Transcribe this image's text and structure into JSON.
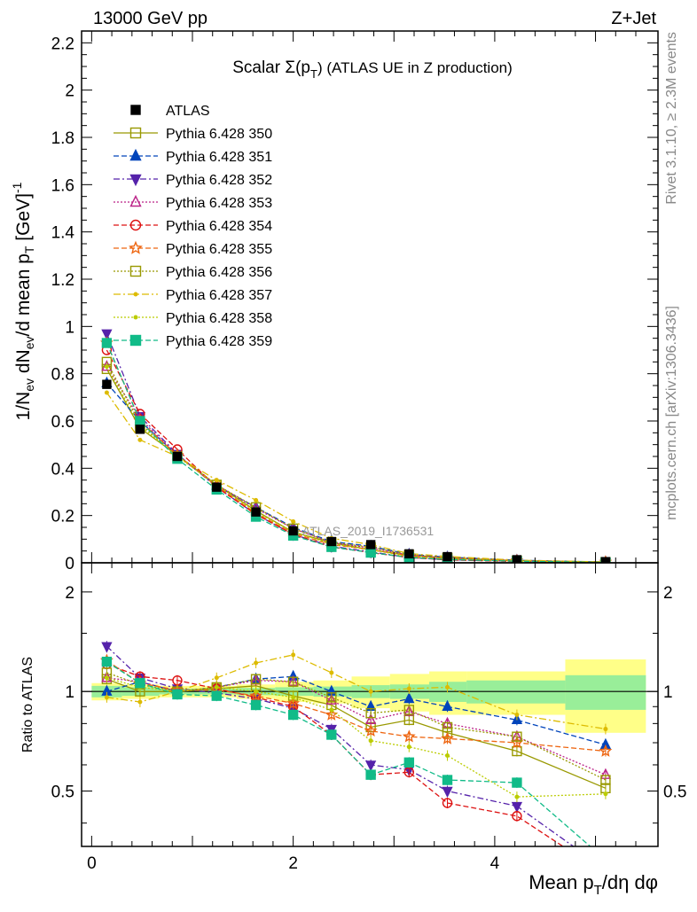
{
  "header": {
    "left": "13000 GeV pp",
    "right": "Z+Jet"
  },
  "side_labels": {
    "rivet": "Rivet 3.1.10, ≥ 2.3M events",
    "mcplots": "mcplots.cern.ch [arXiv:1306.3436]"
  },
  "watermark": "ATLAS_2019_I1736531",
  "chart_data": [
    {
      "type": "line",
      "panel": "main",
      "title": "Scalar Σ(pT) (ATLAS UE in Z production)",
      "title_parts": {
        "prefix": "Scalar Σ(p",
        "sub": "T",
        "suffix": ") (ATLAS UE in Z production)"
      },
      "ylabel": "1/N_ev dN_ev/d mean p_T [GeV]^-1",
      "xlabel": "Mean p_T/dη dφ",
      "xlim": [
        -0.1,
        5.62
      ],
      "ylim": [
        0,
        2.25
      ],
      "y_ticks": [
        "0",
        "0.2",
        "0.4",
        "0.6",
        "0.8",
        "1",
        "1.2",
        "1.4",
        "1.6",
        "1.8",
        "2",
        "2.2"
      ],
      "legend_position": "top-left",
      "x": [
        0.15,
        0.48,
        0.85,
        1.24,
        1.63,
        2.0,
        2.38,
        2.77,
        3.15,
        3.53,
        4.22,
        5.1
      ],
      "reference": {
        "name": "ATLAS",
        "color": "#000000",
        "values": [
          0.755,
          0.565,
          0.45,
          0.32,
          0.215,
          0.135,
          0.09,
          0.077,
          0.038,
          0.026,
          0.013,
          0.005
        ]
      },
      "series": [
        {
          "name": "Pythia 6.428 350",
          "color": "#999900",
          "marker": "square-open",
          "dash": "solid",
          "values": [
            0.82,
            0.57,
            0.455,
            0.33,
            0.22,
            0.13,
            0.085,
            0.055,
            0.031,
            0.021,
            0.009,
            0.003
          ]
        },
        {
          "name": "Pythia 6.428 351",
          "color": "#0044bb",
          "marker": "triangle-up",
          "dash": "6,3",
          "values": [
            0.76,
            0.6,
            0.455,
            0.325,
            0.235,
            0.15,
            0.09,
            0.07,
            0.036,
            0.024,
            0.011,
            0.0035
          ]
        },
        {
          "name": "Pythia 6.428 352",
          "color": "#5522aa",
          "marker": "triangle-down",
          "dash": "7,3,2,3",
          "values": [
            0.97,
            0.62,
            0.46,
            0.32,
            0.205,
            0.12,
            0.07,
            0.046,
            0.022,
            0.013,
            0.006,
            0.0015
          ]
        },
        {
          "name": "Pythia 6.428 353",
          "color": "#bb2288",
          "marker": "triangle-up-open",
          "dash": "2,2",
          "values": [
            0.83,
            0.61,
            0.455,
            0.33,
            0.23,
            0.145,
            0.085,
            0.063,
            0.033,
            0.021,
            0.0095,
            0.0028
          ]
        },
        {
          "name": "Pythia 6.428 354",
          "color": "#dd1111",
          "marker": "circle-open",
          "dash": "6,3",
          "values": [
            0.9,
            0.63,
            0.48,
            0.32,
            0.205,
            0.12,
            0.067,
            0.043,
            0.022,
            0.012,
            0.0055,
            0.0014
          ]
        },
        {
          "name": "Pythia 6.428 355",
          "color": "#ee6611",
          "marker": "star-open",
          "dash": "6,3",
          "values": [
            0.93,
            0.6,
            0.455,
            0.325,
            0.21,
            0.125,
            0.077,
            0.056,
            0.028,
            0.019,
            0.0088,
            0.0033
          ]
        },
        {
          "name": "Pythia 6.428 356",
          "color": "#999900",
          "marker": "square-open",
          "dash": "2,2",
          "values": [
            0.85,
            0.59,
            0.45,
            0.33,
            0.235,
            0.145,
            0.087,
            0.066,
            0.034,
            0.02,
            0.0095,
            0.0027
          ]
        },
        {
          "name": "Pythia 6.428 357",
          "color": "#ddbb00",
          "marker": "dot",
          "dash": "8,3,2,3",
          "values": [
            0.72,
            0.52,
            0.45,
            0.35,
            0.265,
            0.175,
            0.104,
            0.077,
            0.039,
            0.027,
            0.011,
            0.0039
          ]
        },
        {
          "name": "Pythia 6.428 358",
          "color": "#bbcc00",
          "marker": "dot",
          "dash": "2,2",
          "values": [
            0.83,
            0.58,
            0.45,
            0.33,
            0.215,
            0.13,
            0.08,
            0.055,
            0.026,
            0.017,
            0.0064,
            0.0022
          ]
        },
        {
          "name": "Pythia 6.428 359",
          "color": "#11bb88",
          "marker": "square",
          "dash": "6,3",
          "values": [
            0.93,
            0.6,
            0.44,
            0.31,
            0.195,
            0.115,
            0.067,
            0.043,
            0.023,
            0.014,
            0.0068,
            0.0015
          ]
        }
      ]
    },
    {
      "type": "line",
      "panel": "ratio",
      "ylabel": "Ratio to ATLAS",
      "xlabel": "Mean p_T/dη dφ",
      "xlim": [
        -0.1,
        5.62
      ],
      "ylim": [
        0.34,
        2.45
      ],
      "x_ticks": [
        "0",
        "2",
        "4"
      ],
      "y_ticks": [
        "0.5",
        "1",
        "2"
      ],
      "x": [
        0.15,
        0.48,
        0.85,
        1.24,
        1.63,
        2.0,
        2.38,
        2.77,
        3.15,
        3.53,
        4.22,
        5.1
      ],
      "bands": {
        "edges": [
          0.0,
          0.3,
          0.67,
          1.05,
          1.44,
          1.82,
          2.2,
          2.58,
          2.96,
          3.35,
          3.72,
          4.7,
          5.5
        ],
        "stat": [
          0.04,
          0.03,
          0.02,
          0.02,
          0.025,
          0.03,
          0.035,
          0.045,
          0.05,
          0.07,
          0.08,
          0.12
        ],
        "total": [
          0.06,
          0.05,
          0.04,
          0.04,
          0.05,
          0.07,
          0.08,
          0.11,
          0.13,
          0.15,
          0.15,
          0.25
        ],
        "stat_color": "#99ee99",
        "total_color": "#ffff88"
      },
      "series": [
        {
          "name": "Pythia 6.428 350",
          "values": [
            1.09,
            1.0,
            1.0,
            1.02,
            1.04,
            0.97,
            0.91,
            0.78,
            0.82,
            0.75,
            0.66,
            0.51
          ]
        },
        {
          "name": "Pythia 6.428 351",
          "values": [
            1.0,
            1.07,
            1.0,
            1.03,
            1.09,
            1.11,
            1.0,
            0.9,
            0.95,
            0.9,
            0.82,
            0.69
          ]
        },
        {
          "name": "Pythia 6.428 352",
          "values": [
            1.37,
            1.1,
            1.02,
            0.99,
            0.95,
            0.89,
            0.77,
            0.6,
            0.58,
            0.5,
            0.45,
            0.29
          ]
        },
        {
          "name": "Pythia 6.428 353",
          "values": [
            1.1,
            1.07,
            1.0,
            1.03,
            1.08,
            1.07,
            0.94,
            0.82,
            0.87,
            0.8,
            0.73,
            0.56
          ]
        },
        {
          "name": "Pythia 6.428 354",
          "values": [
            1.21,
            1.11,
            1.08,
            1.02,
            0.96,
            0.9,
            0.74,
            0.56,
            0.57,
            0.46,
            0.42,
            0.28
          ]
        },
        {
          "name": "Pythia 6.428 355",
          "values": [
            1.24,
            1.06,
            1.01,
            1.01,
            0.97,
            0.92,
            0.85,
            0.76,
            0.73,
            0.72,
            0.7,
            0.66
          ]
        },
        {
          "name": "Pythia 6.428 356",
          "values": [
            1.14,
            1.05,
            1.0,
            1.03,
            1.09,
            1.07,
            0.96,
            0.86,
            0.88,
            0.78,
            0.73,
            0.54
          ]
        },
        {
          "name": "Pythia 6.428 357",
          "values": [
            0.96,
            0.93,
            1.0,
            1.1,
            1.22,
            1.29,
            1.14,
            1.0,
            1.02,
            1.03,
            0.85,
            0.77
          ]
        },
        {
          "name": "Pythia 6.428 358",
          "values": [
            1.1,
            1.03,
            1.0,
            1.03,
            1.0,
            0.96,
            0.88,
            0.71,
            0.68,
            0.64,
            0.48,
            0.49
          ]
        },
        {
          "name": "Pythia 6.428 359",
          "values": [
            1.23,
            1.06,
            0.98,
            0.97,
            0.91,
            0.85,
            0.74,
            0.56,
            0.61,
            0.54,
            0.53,
            0.31
          ]
        }
      ]
    }
  ]
}
